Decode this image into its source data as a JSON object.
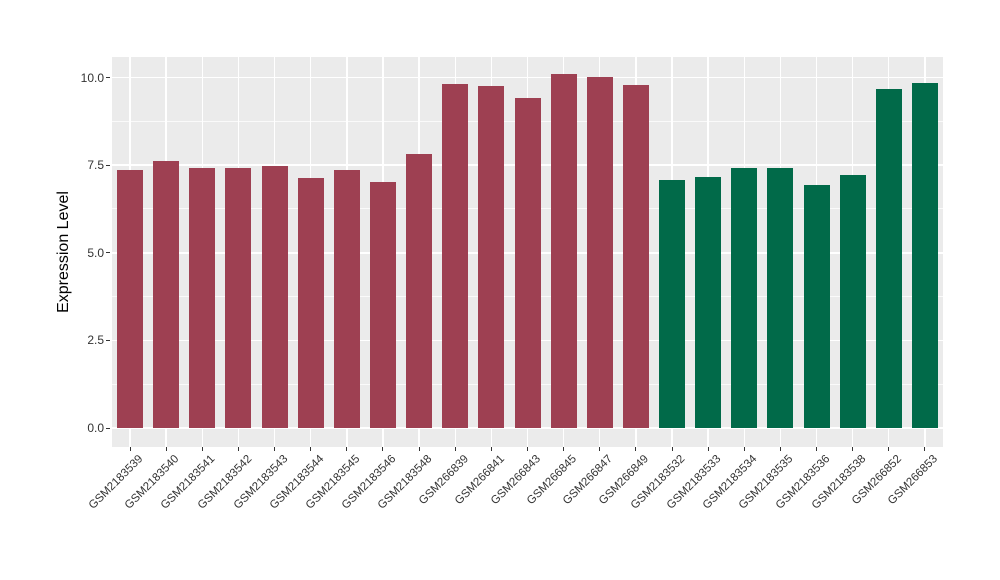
{
  "chart_data": {
    "type": "bar",
    "title": "",
    "xlabel": "",
    "ylabel": "Expression Level",
    "ylim": [
      -0.53,
      10.63
    ],
    "yticks": [
      0.0,
      2.5,
      5.0,
      7.5,
      10.0
    ],
    "ytick_labels": [
      "0.0",
      "2.5",
      "5.0",
      "7.5",
      "10.0"
    ],
    "minor_gridlines": [
      1.25,
      3.75,
      6.25,
      8.75
    ],
    "grid": "on",
    "legend": "none",
    "panel_bg_color": "#EBEBEB",
    "grid_color": "#FFFFFF",
    "colors": {
      "red": "#9E4052",
      "green": "#016A49"
    },
    "categories": [
      "GSM2183539",
      "GSM2183540",
      "GSM2183541",
      "GSM2183542",
      "GSM2183543",
      "GSM2183544",
      "GSM2183545",
      "GSM2183546",
      "GSM2183548",
      "GSM266839",
      "GSM266841",
      "GSM266843",
      "GSM266845",
      "GSM266847",
      "GSM266849",
      "GSM2183532",
      "GSM2183533",
      "GSM2183534",
      "GSM2183535",
      "GSM2183536",
      "GSM2183538",
      "GSM266852",
      "GSM266853"
    ],
    "bars": [
      {
        "label": "GSM2183539",
        "value": 7.35,
        "color_key": "red"
      },
      {
        "label": "GSM2183540",
        "value": 7.61,
        "color_key": "red"
      },
      {
        "label": "GSM2183541",
        "value": 7.43,
        "color_key": "red"
      },
      {
        "label": "GSM2183542",
        "value": 7.42,
        "color_key": "red"
      },
      {
        "label": "GSM2183543",
        "value": 7.47,
        "color_key": "red"
      },
      {
        "label": "GSM2183544",
        "value": 7.12,
        "color_key": "red"
      },
      {
        "label": "GSM2183545",
        "value": 7.37,
        "color_key": "red"
      },
      {
        "label": "GSM2183546",
        "value": 7.01,
        "color_key": "red"
      },
      {
        "label": "GSM2183548",
        "value": 7.82,
        "color_key": "red"
      },
      {
        "label": "GSM266839",
        "value": 9.82,
        "color_key": "red"
      },
      {
        "label": "GSM266841",
        "value": 9.77,
        "color_key": "red"
      },
      {
        "label": "GSM266843",
        "value": 9.42,
        "color_key": "red"
      },
      {
        "label": "GSM266845",
        "value": 10.09,
        "color_key": "red"
      },
      {
        "label": "GSM266847",
        "value": 10.02,
        "color_key": "red"
      },
      {
        "label": "GSM266849",
        "value": 9.79,
        "color_key": "red"
      },
      {
        "label": "GSM2183532",
        "value": 7.07,
        "color_key": "green"
      },
      {
        "label": "GSM2183533",
        "value": 7.16,
        "color_key": "green"
      },
      {
        "label": "GSM2183534",
        "value": 7.43,
        "color_key": "green"
      },
      {
        "label": "GSM2183535",
        "value": 7.42,
        "color_key": "green"
      },
      {
        "label": "GSM2183536",
        "value": 6.92,
        "color_key": "green"
      },
      {
        "label": "GSM2183538",
        "value": 7.22,
        "color_key": "green"
      },
      {
        "label": "GSM266852",
        "value": 9.68,
        "color_key": "green"
      },
      {
        "label": "GSM266853",
        "value": 9.83,
        "color_key": "green"
      }
    ]
  }
}
